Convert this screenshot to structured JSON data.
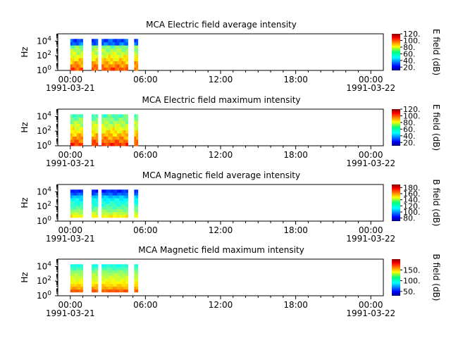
{
  "x_ticks": [
    {
      "h": 0,
      "label": "00:00"
    },
    {
      "h": 6,
      "label": "06:00"
    },
    {
      "h": 12,
      "label": "12:00"
    },
    {
      "h": 18,
      "label": "18:00"
    },
    {
      "h": 24,
      "label": "00:00"
    }
  ],
  "date_labels": {
    "start": "1991-03-21",
    "end": "1991-03-22"
  },
  "y_tick_labels": [
    {
      "base": "10",
      "exp": "0",
      "log": 0
    },
    {
      "base": "10",
      "exp": "2",
      "log": 2
    },
    {
      "base": "10",
      "exp": "4",
      "log": 4
    }
  ],
  "chart_data": [
    {
      "type": "heatmap",
      "title": "MCA  Electric field average intensity",
      "ylabel": "Hz",
      "y_scale": "log",
      "ylim": [
        1,
        100000
      ],
      "xlim_hours": [
        -1,
        25
      ],
      "colorbar": {
        "label": "E field (dB)",
        "min": 10,
        "max": 120,
        "ticks": [
          20,
          40,
          60,
          80,
          100,
          120
        ],
        "tick_labels": [
          "20.",
          "40.",
          "60.",
          "80.",
          "100.",
          "120."
        ]
      },
      "segments_hours": [
        [
          0.0,
          1.0
        ],
        [
          1.7,
          2.2
        ],
        [
          2.5,
          4.6
        ],
        [
          5.1,
          5.4
        ]
      ],
      "ylog_range": [
        0,
        4.3
      ],
      "profile_db": [
        100,
        92,
        85,
        78,
        72,
        66,
        60,
        55
      ],
      "contrast": 0.75,
      "top_fade": 0.2
    },
    {
      "type": "heatmap",
      "title": "MCA  Electric field maximum intensity",
      "ylabel": "Hz",
      "y_scale": "log",
      "ylim": [
        1,
        100000
      ],
      "xlim_hours": [
        -1,
        25
      ],
      "colorbar": {
        "label": "E field (dB)",
        "min": 10,
        "max": 120,
        "ticks": [
          20,
          40,
          60,
          80,
          100,
          120
        ],
        "tick_labels": [
          "20.",
          "40.",
          "60.",
          "80.",
          "100.",
          "120."
        ]
      },
      "segments_hours": [
        [
          0.0,
          1.0
        ],
        [
          1.7,
          2.2
        ],
        [
          2.5,
          4.6
        ],
        [
          5.1,
          5.4
        ]
      ],
      "ylog_range": [
        0,
        4.3
      ],
      "profile_db": [
        104,
        95,
        88,
        82,
        76,
        70,
        64,
        58
      ],
      "contrast": 0.75,
      "top_fade": 0.0
    },
    {
      "type": "heatmap",
      "title": "MCA  Magnetic field average intensity",
      "ylabel": "Hz",
      "y_scale": "log",
      "ylim": [
        1,
        100000
      ],
      "xlim_hours": [
        -1,
        25
      ],
      "colorbar": {
        "label": "B field (dB)",
        "min": 70,
        "max": 190,
        "ticks": [
          80,
          100,
          120,
          140,
          160,
          180
        ],
        "tick_labels": [
          "80.",
          "100.",
          "120.",
          "140.",
          "160.",
          "180."
        ]
      },
      "segments_hours": [
        [
          0.0,
          1.0
        ],
        [
          1.7,
          2.2
        ],
        [
          2.5,
          4.6
        ],
        [
          5.1,
          5.4
        ]
      ],
      "ylog_range": [
        0.5,
        4.3
      ],
      "profile_db": [
        150,
        138,
        128,
        122,
        118,
        112,
        95,
        86
      ],
      "contrast": 0.5,
      "top_fade": 0.0
    },
    {
      "type": "heatmap",
      "title": "MCA  Magnetic field maximum intensity",
      "ylabel": "Hz",
      "y_scale": "log",
      "ylim": [
        1,
        100000
      ],
      "xlim_hours": [
        -1,
        25
      ],
      "colorbar": {
        "label": "B field (dB)",
        "min": 30,
        "max": 200,
        "ticks": [
          50,
          100,
          150
        ],
        "tick_labels": [
          "50.",
          "100.",
          "150."
        ]
      },
      "segments_hours": [
        [
          0.0,
          1.0
        ],
        [
          1.7,
          2.2
        ],
        [
          2.5,
          4.6
        ],
        [
          5.1,
          5.4
        ]
      ],
      "ylog_range": [
        0.5,
        4.3
      ],
      "profile_db": [
        170,
        152,
        140,
        132,
        126,
        118,
        105,
        95
      ],
      "contrast": 0.5,
      "top_fade": 0.0
    }
  ]
}
